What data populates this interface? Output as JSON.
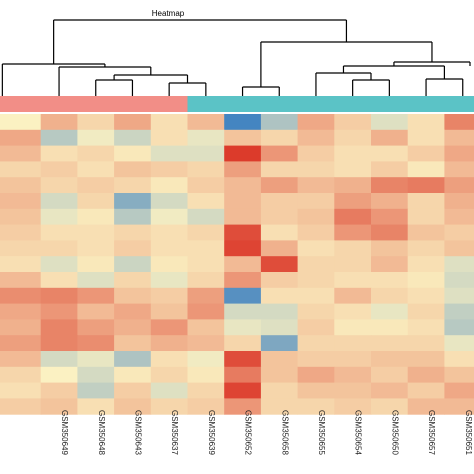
{
  "chart_data": {
    "type": "heatmap",
    "title": "Heatmap",
    "columns": [
      "",
      "GSM350649",
      "GSM350648",
      "GSM350643",
      "GSM350637",
      "GSM350639",
      "GSM350652",
      "GSM350658",
      "GSM350655",
      "GSM350654",
      "GSM350650",
      "GSM350657",
      "GSM350651",
      ""
    ],
    "column_groups": [
      {
        "color": "#f28e87",
        "columns": 5
      },
      {
        "color": "#5bc3c6",
        "columns": 8
      }
    ],
    "color_scale": {
      "low": "#3a7fc1",
      "mid": "#fbf1c2",
      "high": "#dc3b2b",
      "range": [
        -2,
        2
      ]
    },
    "values": [
      [
        0.0,
        0.7,
        0.3,
        0.8,
        0.2,
        0.6,
        -1.9,
        -0.8,
        0.8,
        0.4,
        -0.3,
        0.2,
        1.2,
        0.5
      ],
      [
        0.8,
        -0.7,
        -0.1,
        -0.5,
        0.2,
        -0.2,
        0.5,
        0.3,
        0.6,
        0.3,
        0.7,
        0.2,
        0.6,
        0.6
      ],
      [
        0.6,
        0.2,
        0.3,
        0.1,
        -0.3,
        -0.3,
        2.0,
        1.0,
        0.4,
        0.2,
        0.2,
        0.4,
        0.8,
        0.4
      ],
      [
        0.3,
        0.4,
        0.2,
        0.5,
        0.4,
        0.3,
        0.9,
        0.3,
        0.3,
        0.2,
        0.4,
        0.1,
        0.6,
        0.8
      ],
      [
        0.5,
        0.3,
        0.4,
        0.3,
        0.1,
        0.4,
        0.6,
        0.9,
        0.6,
        0.7,
        1.2,
        1.3,
        0.9,
        0.6
      ],
      [
        0.6,
        -0.4,
        0.3,
        -1.2,
        -0.4,
        0.2,
        0.6,
        0.4,
        0.4,
        0.9,
        0.7,
        0.3,
        0.7,
        0.5
      ],
      [
        0.5,
        -0.2,
        0.1,
        -0.7,
        -0.1,
        -0.4,
        0.6,
        0.4,
        0.5,
        1.3,
        1.0,
        0.3,
        0.6,
        0.3
      ],
      [
        0.4,
        0.2,
        0.2,
        0.3,
        0.2,
        0.3,
        1.8,
        0.2,
        0.4,
        1.0,
        1.2,
        0.5,
        0.4,
        0.2
      ],
      [
        0.3,
        0.3,
        0.2,
        0.4,
        0.2,
        0.2,
        1.9,
        0.7,
        0.2,
        0.3,
        0.5,
        0.3,
        0.5,
        0.6
      ],
      [
        0.2,
        -0.3,
        0.1,
        -0.5,
        0.1,
        0.2,
        0.6,
        1.8,
        0.3,
        0.3,
        0.6,
        0.2,
        -0.3,
        0.4
      ],
      [
        0.6,
        0.2,
        -0.3,
        0.3,
        -0.2,
        0.3,
        1.0,
        0.4,
        0.3,
        0.2,
        0.2,
        0.1,
        -0.4,
        0.4
      ],
      [
        1.1,
        1.2,
        1.0,
        0.5,
        0.4,
        0.9,
        -1.7,
        0.2,
        0.2,
        0.6,
        0.3,
        0.2,
        -0.3,
        0.5
      ],
      [
        0.8,
        1.0,
        0.6,
        0.8,
        0.5,
        1.0,
        -0.4,
        -0.4,
        0.3,
        0.2,
        -0.2,
        0.3,
        -0.6,
        0.4
      ],
      [
        0.7,
        1.2,
        0.9,
        0.7,
        1.0,
        0.5,
        -0.2,
        -0.3,
        0.4,
        0.1,
        0.1,
        0.2,
        -0.7,
        0.5
      ],
      [
        0.9,
        1.2,
        1.1,
        0.5,
        0.7,
        0.6,
        0.3,
        -1.3,
        0.3,
        0.3,
        0.3,
        0.3,
        -0.2,
        0.6
      ],
      [
        0.6,
        -0.4,
        -0.2,
        -0.8,
        0.2,
        -0.1,
        1.8,
        0.5,
        0.4,
        0.4,
        0.5,
        0.5,
        0.2,
        0.2
      ],
      [
        0.3,
        0.0,
        -0.4,
        0.1,
        0.3,
        0.1,
        1.3,
        0.5,
        0.8,
        0.6,
        0.4,
        0.7,
        0.5,
        0.6
      ],
      [
        0.2,
        0.4,
        -0.6,
        0.4,
        -0.3,
        0.3,
        1.9,
        0.3,
        0.5,
        0.5,
        0.6,
        0.4,
        0.8,
        0.5
      ],
      [
        0.4,
        0.5,
        0.2,
        0.5,
        0.3,
        0.4,
        1.0,
        0.3,
        0.3,
        0.4,
        0.3,
        0.6,
        0.6,
        0.7
      ]
    ],
    "grid": false,
    "legend": "none"
  }
}
